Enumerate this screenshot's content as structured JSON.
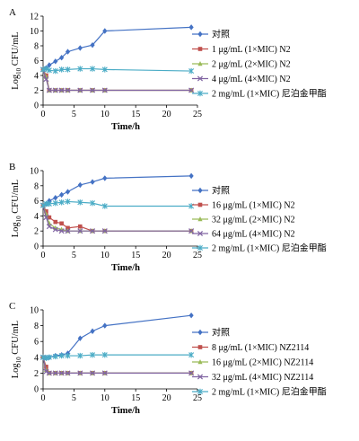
{
  "chart_data": [
    {
      "type": "line",
      "panel_label": "A",
      "xlabel": "Time/h",
      "ylabel_main": "Log",
      "ylabel_sub": "10",
      "ylabel_rest": " CFU/mL",
      "xlim": [
        0,
        25
      ],
      "ylim": [
        0,
        12
      ],
      "xticks": [
        0,
        5,
        10,
        15,
        20,
        25
      ],
      "yticks": [
        0,
        2,
        4,
        6,
        8,
        10,
        12
      ],
      "legend_position": "right",
      "series": [
        {
          "name": "对照",
          "color": "#4472c4",
          "marker": "diamond",
          "x": [
            0,
            0.5,
            1,
            2,
            3,
            4,
            6,
            8,
            10,
            24
          ],
          "y": [
            4.8,
            5.0,
            5.4,
            5.9,
            6.4,
            7.2,
            7.7,
            8.1,
            10.0,
            10.5
          ]
        },
        {
          "name": "1 μg/mL (1×MIC) N2",
          "color": "#c0504d",
          "marker": "square",
          "x": [
            0,
            0.5,
            1,
            2,
            3,
            4,
            6,
            8,
            10,
            24
          ],
          "y": [
            4.8,
            4.0,
            2.0,
            2.0,
            2.0,
            2.0,
            2.0,
            2.0,
            2.0,
            2.0
          ]
        },
        {
          "name": "2 μg/mL (2×MIC) N2",
          "color": "#9bbb59",
          "marker": "triangle",
          "x": [
            0,
            0.5,
            1,
            2,
            3,
            4,
            6,
            8,
            10,
            24
          ],
          "y": [
            4.8,
            3.8,
            2.0,
            2.0,
            2.0,
            2.0,
            2.0,
            2.0,
            2.0,
            2.0
          ]
        },
        {
          "name": "4 μg/mL (4×MIC) N2",
          "color": "#8064a2",
          "marker": "x",
          "x": [
            0,
            0.5,
            1,
            2,
            3,
            4,
            6,
            8,
            10,
            24
          ],
          "y": [
            4.8,
            3.5,
            2.0,
            2.0,
            2.0,
            2.0,
            2.0,
            2.0,
            2.0,
            2.0
          ]
        },
        {
          "name": "2 mg/mL (1×MIC) 尼泊金甲酯",
          "color": "#4bacc6",
          "marker": "star",
          "x": [
            0,
            0.5,
            1,
            2,
            3,
            4,
            6,
            8,
            10,
            24
          ],
          "y": [
            4.8,
            4.9,
            4.7,
            4.6,
            4.8,
            4.8,
            4.9,
            4.9,
            4.8,
            4.6
          ]
        }
      ]
    },
    {
      "type": "line",
      "panel_label": "B",
      "xlabel": "Time/h",
      "ylabel_main": "Log",
      "ylabel_sub": "10",
      "ylabel_rest": " CFU/mL",
      "xlim": [
        0,
        25
      ],
      "ylim": [
        0,
        10
      ],
      "xticks": [
        0,
        5,
        10,
        15,
        20,
        25
      ],
      "yticks": [
        0,
        2,
        4,
        6,
        8,
        10
      ],
      "legend_position": "right",
      "series": [
        {
          "name": "对照",
          "color": "#4472c4",
          "marker": "diamond",
          "x": [
            0,
            0.5,
            1,
            2,
            3,
            4,
            6,
            8,
            10,
            24
          ],
          "y": [
            5.4,
            5.6,
            6.0,
            6.4,
            6.8,
            7.2,
            8.1,
            8.5,
            9.0,
            9.3
          ]
        },
        {
          "name": "16 μg/mL (1×MIC) N2",
          "color": "#c0504d",
          "marker": "square",
          "x": [
            0,
            0.5,
            1,
            2,
            3,
            4,
            6,
            8,
            10,
            24
          ],
          "y": [
            5.4,
            4.6,
            3.8,
            3.2,
            3.0,
            2.4,
            2.6,
            2.0,
            2.0,
            2.0
          ]
        },
        {
          "name": "32 μg/mL (2×MIC) N2",
          "color": "#9bbb59",
          "marker": "triangle",
          "x": [
            0,
            0.5,
            1,
            2,
            3,
            4,
            6,
            8,
            10,
            24
          ],
          "y": [
            5.4,
            4.2,
            3.0,
            2.4,
            2.2,
            2.0,
            2.0,
            2.0,
            2.0,
            2.0
          ]
        },
        {
          "name": "64 μg/mL (4×MIC) N2",
          "color": "#8064a2",
          "marker": "x",
          "x": [
            0,
            0.5,
            1,
            2,
            3,
            4,
            6,
            8,
            10,
            24
          ],
          "y": [
            5.4,
            3.8,
            2.6,
            2.2,
            2.0,
            2.0,
            2.0,
            2.0,
            2.0,
            2.0
          ]
        },
        {
          "name": "2 mg/mL (1×MIC) 尼泊金甲酯",
          "color": "#4bacc6",
          "marker": "star",
          "x": [
            0,
            0.5,
            1,
            2,
            3,
            4,
            6,
            8,
            10,
            24
          ],
          "y": [
            5.4,
            5.6,
            5.6,
            5.7,
            5.8,
            5.9,
            5.8,
            5.7,
            5.3,
            5.3
          ]
        }
      ]
    },
    {
      "type": "line",
      "panel_label": "C",
      "xlabel": "Time/h",
      "ylabel_main": "Log",
      "ylabel_sub": "10",
      "ylabel_rest": " CFU/mL",
      "xlim": [
        0,
        25
      ],
      "ylim": [
        0,
        10
      ],
      "xticks": [
        0,
        5,
        10,
        15,
        20,
        25
      ],
      "yticks": [
        0,
        2,
        4,
        6,
        8,
        10
      ],
      "legend_position": "right",
      "series": [
        {
          "name": "对照",
          "color": "#4472c4",
          "marker": "diamond",
          "x": [
            0,
            0.5,
            1,
            2,
            3,
            4,
            6,
            8,
            10,
            24
          ],
          "y": [
            4.0,
            3.9,
            4.0,
            4.2,
            4.3,
            4.5,
            6.4,
            7.3,
            8.0,
            9.3
          ]
        },
        {
          "name": "8 μg/mL (1×MIC) NZ2114",
          "color": "#c0504d",
          "marker": "square",
          "x": [
            0,
            0.5,
            1,
            2,
            3,
            4,
            6,
            8,
            10,
            24
          ],
          "y": [
            4.0,
            2.8,
            2.0,
            2.0,
            2.0,
            2.0,
            2.0,
            2.0,
            2.0,
            2.0
          ]
        },
        {
          "name": "16 μg/mL (2×MIC) NZ2114",
          "color": "#9bbb59",
          "marker": "triangle",
          "x": [
            0,
            0.5,
            1,
            2,
            3,
            4,
            6,
            8,
            10,
            24
          ],
          "y": [
            4.0,
            2.4,
            2.0,
            2.0,
            2.0,
            2.0,
            2.0,
            2.0,
            2.0,
            2.0
          ]
        },
        {
          "name": "32 μg/mL (4×MIC) NZ2114",
          "color": "#8064a2",
          "marker": "x",
          "x": [
            0,
            0.5,
            1,
            2,
            3,
            4,
            6,
            8,
            10,
            24
          ],
          "y": [
            4.0,
            2.2,
            2.0,
            2.0,
            2.0,
            2.0,
            2.0,
            2.0,
            2.0,
            2.0
          ]
        },
        {
          "name": "2 mg/mL (1×MIC) 尼泊金甲酯",
          "color": "#4bacc6",
          "marker": "star",
          "x": [
            0,
            0.5,
            1,
            2,
            3,
            4,
            6,
            8,
            10,
            24
          ],
          "y": [
            4.0,
            3.9,
            4.0,
            4.1,
            4.2,
            4.2,
            4.2,
            4.3,
            4.3,
            4.3
          ]
        }
      ]
    }
  ]
}
